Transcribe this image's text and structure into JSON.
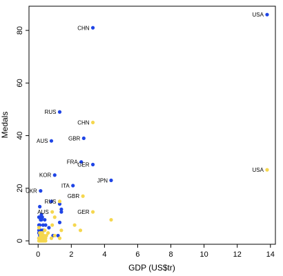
{
  "chart_data": {
    "type": "scatter",
    "title": "",
    "xlabel": "GDP (US$tr)",
    "ylabel": "Medals",
    "xlim": [
      -0.55,
      14.3
    ],
    "ylim": [
      -1.3,
      89.2
    ],
    "xticks": [
      0,
      2,
      4,
      6,
      8,
      10,
      12,
      14
    ],
    "yticks": [
      0,
      20,
      40,
      60,
      80
    ],
    "grid": false,
    "legend": "none",
    "colors": {
      "blue": "#1f45e6",
      "gold": "#f5d74f"
    },
    "series": [
      {
        "color": "#1f45e6",
        "points": [
          {
            "x": 13.8,
            "y": 86,
            "label": "USA"
          },
          {
            "x": 3.3,
            "y": 81,
            "label": "CHN"
          },
          {
            "x": 1.3,
            "y": 49,
            "label": "RUS"
          },
          {
            "x": 2.75,
            "y": 39,
            "label": "GBR"
          },
          {
            "x": 0.8,
            "y": 38,
            "label": "AUS"
          },
          {
            "x": 2.6,
            "y": 30,
            "label": "FRA"
          },
          {
            "x": 3.3,
            "y": 29,
            "label": "GER"
          },
          {
            "x": 1.0,
            "y": 25,
            "label": "KOR"
          },
          {
            "x": 4.4,
            "y": 23,
            "label": "JPN"
          },
          {
            "x": 2.1,
            "y": 21,
            "label": "ITA"
          },
          {
            "x": 0.15,
            "y": 19,
            "label": "UKR"
          },
          {
            "x": 0.8,
            "y": 15,
            "label": ""
          },
          {
            "x": 1.3,
            "y": 14,
            "label": ""
          },
          {
            "x": 0.1,
            "y": 13,
            "label": ""
          },
          {
            "x": 1.4,
            "y": 12,
            "label": ""
          },
          {
            "x": 1.4,
            "y": 11,
            "label": ""
          },
          {
            "x": 0.2,
            "y": 10,
            "label": ""
          },
          {
            "x": 0.05,
            "y": 9,
            "label": ""
          },
          {
            "x": 0.1,
            "y": 9,
            "label": ""
          },
          {
            "x": 0.15,
            "y": 8,
            "label": ""
          },
          {
            "x": 0.2,
            "y": 8,
            "label": ""
          },
          {
            "x": 0.25,
            "y": 9,
            "label": ""
          },
          {
            "x": 0.4,
            "y": 8,
            "label": ""
          },
          {
            "x": 1.3,
            "y": 7,
            "label": ""
          },
          {
            "x": 0.05,
            "y": 6,
            "label": ""
          },
          {
            "x": 0.1,
            "y": 6,
            "label": ""
          },
          {
            "x": 0.3,
            "y": 6,
            "label": ""
          },
          {
            "x": 0.45,
            "y": 6,
            "label": ""
          },
          {
            "x": 0.65,
            "y": 5,
            "label": ""
          },
          {
            "x": 0.05,
            "y": 4,
            "label": ""
          },
          {
            "x": 0.15,
            "y": 4,
            "label": ""
          },
          {
            "x": 0.25,
            "y": 4,
            "label": ""
          },
          {
            "x": 0.35,
            "y": 4,
            "label": ""
          },
          {
            "x": 0.05,
            "y": 3,
            "label": ""
          },
          {
            "x": 0.1,
            "y": 2,
            "label": ""
          },
          {
            "x": 0.2,
            "y": 2,
            "label": ""
          },
          {
            "x": 0.9,
            "y": 2,
            "label": ""
          },
          {
            "x": 1.2,
            "y": 2,
            "label": ""
          },
          {
            "x": 0.05,
            "y": 1,
            "label": ""
          },
          {
            "x": 0.15,
            "y": 1,
            "label": ""
          },
          {
            "x": 0.3,
            "y": 1,
            "label": ""
          }
        ]
      },
      {
        "color": "#f5d74f",
        "points": [
          {
            "x": 13.8,
            "y": 27,
            "label": "USA"
          },
          {
            "x": 3.3,
            "y": 45,
            "label": "CHN"
          },
          {
            "x": 2.7,
            "y": 17,
            "label": "GBR"
          },
          {
            "x": 3.3,
            "y": 11,
            "label": "GER"
          },
          {
            "x": 1.3,
            "y": 15,
            "label": "RUS"
          },
          {
            "x": 0.85,
            "y": 11,
            "label": "AUS"
          },
          {
            "x": 4.4,
            "y": 8,
            "label": ""
          },
          {
            "x": 2.2,
            "y": 6,
            "label": ""
          },
          {
            "x": 2.55,
            "y": 4,
            "label": ""
          },
          {
            "x": 1.4,
            "y": 4,
            "label": ""
          },
          {
            "x": 1.0,
            "y": 9,
            "label": ""
          },
          {
            "x": 0.85,
            "y": 6,
            "label": ""
          },
          {
            "x": 1.0,
            "y": 2,
            "label": ""
          },
          {
            "x": 0.8,
            "y": 1,
            "label": ""
          },
          {
            "x": 1.3,
            "y": 1,
            "label": ""
          },
          {
            "x": 0.6,
            "y": 3,
            "label": ""
          },
          {
            "x": 0.5,
            "y": 2,
            "label": ""
          },
          {
            "x": 0.4,
            "y": 4,
            "label": ""
          },
          {
            "x": 0.05,
            "y": 5,
            "label": ""
          },
          {
            "x": 0.1,
            "y": 3,
            "label": ""
          },
          {
            "x": 0.15,
            "y": 2,
            "label": ""
          },
          {
            "x": 0.2,
            "y": 3,
            "label": ""
          },
          {
            "x": 0.25,
            "y": 1,
            "label": ""
          },
          {
            "x": 0.3,
            "y": 2,
            "label": ""
          },
          {
            "x": 0.35,
            "y": 1,
            "label": ""
          },
          {
            "x": 0.45,
            "y": 1,
            "label": ""
          },
          {
            "x": 0.05,
            "y": 0,
            "label": ""
          },
          {
            "x": 0.1,
            "y": 0,
            "label": ""
          },
          {
            "x": 0.15,
            "y": 0,
            "label": ""
          },
          {
            "x": 0.2,
            "y": 0,
            "label": ""
          },
          {
            "x": 0.25,
            "y": 0,
            "label": ""
          },
          {
            "x": 0.3,
            "y": 0,
            "label": ""
          },
          {
            "x": 0.35,
            "y": 0,
            "label": ""
          },
          {
            "x": 0.4,
            "y": 0,
            "label": ""
          },
          {
            "x": 0.45,
            "y": 0,
            "label": ""
          },
          {
            "x": 0.05,
            "y": 1,
            "label": ""
          },
          {
            "x": 0.1,
            "y": 1,
            "label": ""
          },
          {
            "x": 0.2,
            "y": 1,
            "label": ""
          },
          {
            "x": 0.35,
            "y": 2,
            "label": ""
          },
          {
            "x": 0.25,
            "y": 3,
            "label": ""
          }
        ]
      }
    ]
  }
}
